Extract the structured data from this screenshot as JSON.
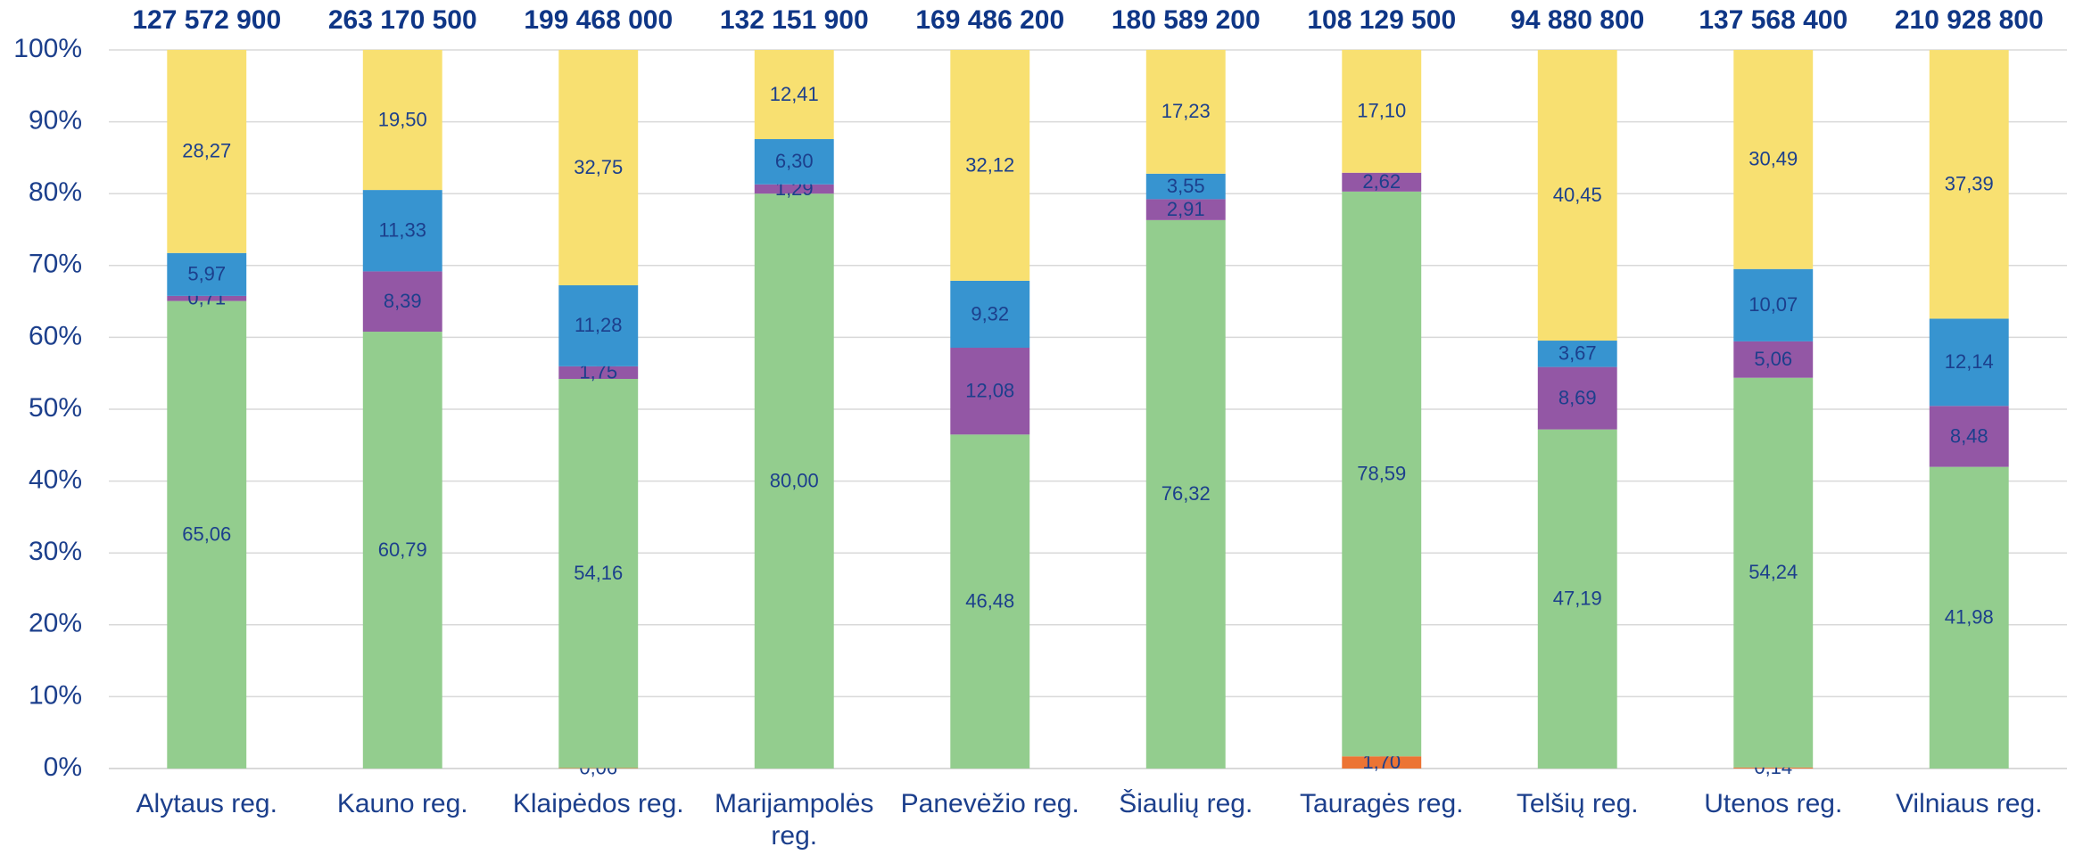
{
  "chart_data": {
    "type": "stacked-bar-100",
    "categories": [
      "Alytaus reg.",
      "Kauno reg.",
      "Klaipėdos reg.",
      "Marijampolės reg.",
      "Panevėžio reg.",
      "Šiaulių reg.",
      "Tauragės reg.",
      "Telšių reg.",
      "Utenos reg.",
      "Vilniaus reg."
    ],
    "totals": [
      127572900,
      263170500,
      199468000,
      132151900,
      169486200,
      180589200,
      108129500,
      94880800,
      137568400,
      210928800
    ],
    "total_labels": [
      "127 572 900",
      "263 170 500",
      "199 468 000",
      "132 151 900",
      "169 486 200",
      "180 589 200",
      "108 129 500",
      "94 880 800",
      "137 568 400",
      "210 928 800"
    ],
    "series": [
      {
        "color": "#ec7434",
        "values": [
          null,
          null,
          0.06,
          null,
          null,
          null,
          1.7,
          null,
          0.14,
          null
        ],
        "value_labels": [
          null,
          null,
          "0,06",
          null,
          null,
          null,
          "1,70",
          null,
          "0,14",
          null
        ]
      },
      {
        "color": "#93cd8e",
        "values": [
          65.06,
          60.79,
          54.16,
          80.0,
          46.48,
          76.32,
          78.59,
          47.19,
          54.24,
          41.98
        ],
        "value_labels": [
          "65,06",
          "60,79",
          "54,16",
          "80,00",
          "46,48",
          "76,32",
          "78,59",
          "47,19",
          "54,24",
          "41,98"
        ]
      },
      {
        "color": "#9357a5",
        "values": [
          0.71,
          8.39,
          1.75,
          1.29,
          12.08,
          2.91,
          2.62,
          8.69,
          5.06,
          8.48
        ],
        "value_labels": [
          "0,71",
          "8,39",
          "1,75",
          "1,29",
          "12,08",
          "2,91",
          "2,62",
          "8,69",
          "5,06",
          "8,48"
        ]
      },
      {
        "color": "#3794d0",
        "values": [
          5.97,
          11.33,
          11.28,
          6.3,
          9.32,
          3.55,
          null,
          3.67,
          10.07,
          12.14
        ],
        "value_labels": [
          "5,97",
          "11,33",
          "11,28",
          "6,30",
          "9,32",
          "3,55",
          null,
          "3,67",
          "10,07",
          "12,14"
        ]
      },
      {
        "color": "#f8e071",
        "values": [
          28.27,
          19.5,
          32.75,
          12.41,
          32.12,
          17.23,
          17.1,
          40.45,
          30.49,
          37.39
        ],
        "value_labels": [
          "28,27",
          "19,50",
          "32,75",
          "12,41",
          "32,12",
          "17,23",
          "17,10",
          "40,45",
          "30,49",
          "37,39"
        ]
      }
    ],
    "ylim": [
      0,
      100
    ],
    "yticks": [
      {
        "value": 0,
        "label": "0%"
      },
      {
        "value": 10,
        "label": "10%"
      },
      {
        "value": 20,
        "label": "20%"
      },
      {
        "value": 30,
        "label": "30%"
      },
      {
        "value": 40,
        "label": "40%"
      },
      {
        "value": 50,
        "label": "50%"
      },
      {
        "value": 60,
        "label": "60%"
      },
      {
        "value": 70,
        "label": "70%"
      },
      {
        "value": 80,
        "label": "80%"
      },
      {
        "value": 90,
        "label": "90%"
      },
      {
        "value": 100,
        "label": "100%"
      }
    ],
    "grid": true
  }
}
